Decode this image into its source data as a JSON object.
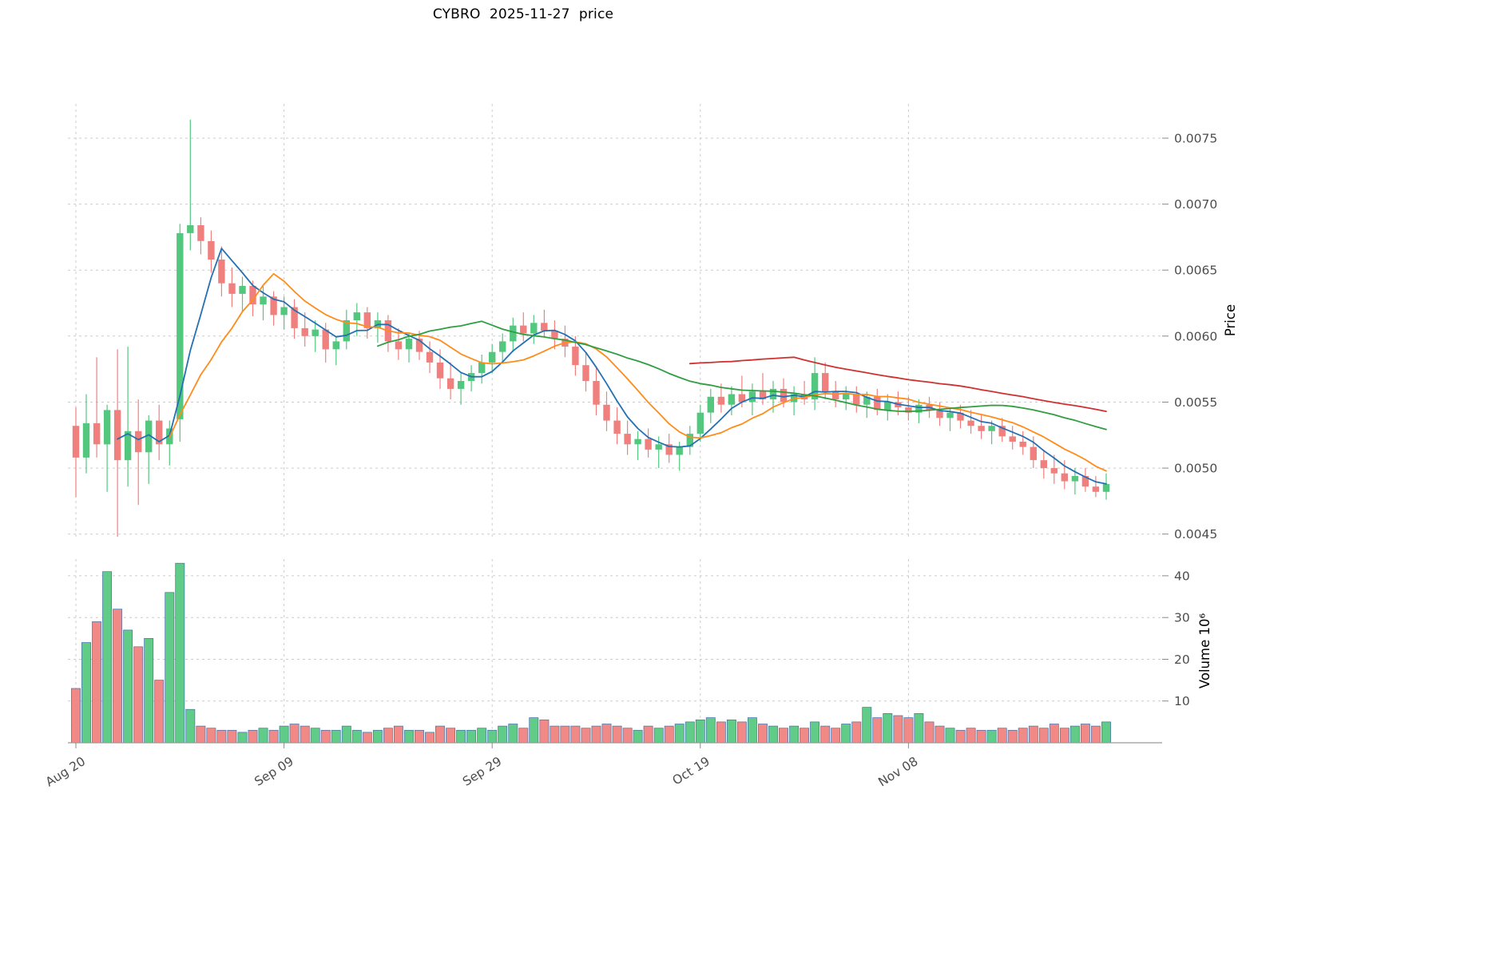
{
  "chart_data": {
    "type": "candlestick",
    "title": "CYBRO  2025-11-27  price",
    "price_axis": {
      "label": "Price",
      "ticks": [
        0.0045,
        0.005,
        0.0055,
        0.006,
        0.0065,
        0.007,
        0.0075
      ],
      "ylim": [
        0.00448,
        0.00776
      ],
      "tick_decimals": 4
    },
    "volume_axis": {
      "label": "Volume  10⁶",
      "ticks": [
        10,
        20,
        30,
        40
      ],
      "ylim": [
        0,
        44
      ],
      "unit_multiplier": 1000000
    },
    "x_axis": {
      "tick_labels": [
        "Aug 20",
        "Sep 09",
        "Sep 29",
        "Oct 19",
        "Nov 08"
      ],
      "tick_indices": [
        0,
        20,
        40,
        60,
        80
      ]
    },
    "colors": {
      "up": "#54c77e",
      "down": "#f0807d",
      "volume_edge": "#4472a8",
      "grid": "#cccccc",
      "axis_text": "#4d4d4d",
      "axis_line": "#9a9a9a"
    },
    "moving_averages": [
      {
        "window": 5,
        "color": "#2470b3"
      },
      {
        "window": 10,
        "color": "#ff8c1a"
      },
      {
        "window": 30,
        "color": "#2f9e41"
      },
      {
        "window": 60,
        "color": "#d03030"
      }
    ],
    "legend": "none",
    "grid": "dashed",
    "candles": {
      "columns": [
        "open",
        "high",
        "low",
        "close",
        "volume_millions"
      ],
      "rows": [
        [
          0.00532,
          0.00546,
          0.00478,
          0.00508,
          13
        ],
        [
          0.00508,
          0.00556,
          0.00496,
          0.00534,
          24
        ],
        [
          0.00534,
          0.00584,
          0.00508,
          0.00518,
          29
        ],
        [
          0.00518,
          0.00548,
          0.00482,
          0.00544,
          41
        ],
        [
          0.00544,
          0.0059,
          0.00448,
          0.00506,
          32
        ],
        [
          0.00506,
          0.00592,
          0.00486,
          0.00528,
          27
        ],
        [
          0.00528,
          0.00552,
          0.00472,
          0.00512,
          23
        ],
        [
          0.00512,
          0.0054,
          0.00488,
          0.00536,
          25
        ],
        [
          0.00536,
          0.00548,
          0.00506,
          0.00518,
          15
        ],
        [
          0.00518,
          0.00536,
          0.00502,
          0.0053,
          36
        ],
        [
          0.00537,
          0.00685,
          0.0052,
          0.00678,
          43
        ],
        [
          0.00678,
          0.00764,
          0.00665,
          0.00684,
          8
        ],
        [
          0.00684,
          0.0069,
          0.00662,
          0.00672,
          4
        ],
        [
          0.00672,
          0.0068,
          0.00648,
          0.00658,
          3.5
        ],
        [
          0.00658,
          0.00668,
          0.0063,
          0.0064,
          3
        ],
        [
          0.0064,
          0.00652,
          0.00622,
          0.00632,
          3
        ],
        [
          0.00632,
          0.00645,
          0.00618,
          0.00638,
          2.5
        ],
        [
          0.00638,
          0.00642,
          0.00615,
          0.00624,
          3
        ],
        [
          0.00624,
          0.00638,
          0.00612,
          0.0063,
          3.5
        ],
        [
          0.0063,
          0.00634,
          0.00608,
          0.00616,
          3
        ],
        [
          0.00616,
          0.0063,
          0.00605,
          0.00622,
          4
        ],
        [
          0.00622,
          0.00628,
          0.00598,
          0.00606,
          4.5
        ],
        [
          0.00606,
          0.00618,
          0.00592,
          0.006,
          4
        ],
        [
          0.006,
          0.00612,
          0.00588,
          0.00605,
          3.5
        ],
        [
          0.00605,
          0.0061,
          0.0058,
          0.0059,
          3
        ],
        [
          0.0059,
          0.006,
          0.00578,
          0.00596,
          3
        ],
        [
          0.00596,
          0.0062,
          0.0059,
          0.00612,
          4
        ],
        [
          0.00612,
          0.00625,
          0.006,
          0.00618,
          3
        ],
        [
          0.00618,
          0.00622,
          0.00598,
          0.00606,
          2.5
        ],
        [
          0.00606,
          0.00618,
          0.00595,
          0.00612,
          3
        ],
        [
          0.00612,
          0.00616,
          0.00588,
          0.00596,
          3.5
        ],
        [
          0.00596,
          0.00606,
          0.00582,
          0.0059,
          4
        ],
        [
          0.0059,
          0.00602,
          0.0058,
          0.00598,
          3
        ],
        [
          0.00598,
          0.00604,
          0.00582,
          0.00588,
          3
        ],
        [
          0.00588,
          0.00596,
          0.00572,
          0.0058,
          2.5
        ],
        [
          0.0058,
          0.0059,
          0.0056,
          0.00568,
          4
        ],
        [
          0.00568,
          0.0058,
          0.00552,
          0.0056,
          3.5
        ],
        [
          0.0056,
          0.00572,
          0.00548,
          0.00566,
          3
        ],
        [
          0.00566,
          0.00578,
          0.00558,
          0.00572,
          3
        ],
        [
          0.00572,
          0.00586,
          0.00564,
          0.0058,
          3.5
        ],
        [
          0.0058,
          0.00594,
          0.00572,
          0.00588,
          3
        ],
        [
          0.00588,
          0.00602,
          0.0058,
          0.00596,
          4
        ],
        [
          0.00596,
          0.00614,
          0.00588,
          0.00608,
          4.5
        ],
        [
          0.00608,
          0.00618,
          0.00596,
          0.00602,
          3.5
        ],
        [
          0.00602,
          0.00616,
          0.00594,
          0.0061,
          6
        ],
        [
          0.0061,
          0.0062,
          0.006,
          0.00604,
          5.5
        ],
        [
          0.00604,
          0.00612,
          0.0059,
          0.00598,
          4
        ],
        [
          0.00598,
          0.00608,
          0.00584,
          0.00592,
          4
        ],
        [
          0.00592,
          0.006,
          0.0057,
          0.00578,
          4
        ],
        [
          0.00578,
          0.00588,
          0.00558,
          0.00566,
          3.5
        ],
        [
          0.00566,
          0.00576,
          0.0054,
          0.00548,
          4
        ],
        [
          0.00548,
          0.00558,
          0.00528,
          0.00536,
          4.5
        ],
        [
          0.00536,
          0.00546,
          0.00518,
          0.00526,
          4
        ],
        [
          0.00526,
          0.00536,
          0.0051,
          0.00518,
          3.5
        ],
        [
          0.00518,
          0.00528,
          0.00506,
          0.00522,
          3
        ],
        [
          0.00522,
          0.0053,
          0.00508,
          0.00514,
          4
        ],
        [
          0.00514,
          0.00524,
          0.005,
          0.00518,
          3.5
        ],
        [
          0.00518,
          0.00526,
          0.00504,
          0.0051,
          4
        ],
        [
          0.0051,
          0.0052,
          0.00498,
          0.00516,
          4.5
        ],
        [
          0.00516,
          0.00532,
          0.0051,
          0.00526,
          5
        ],
        [
          0.00526,
          0.00548,
          0.0052,
          0.00542,
          5.5
        ],
        [
          0.00542,
          0.0056,
          0.00534,
          0.00554,
          6
        ],
        [
          0.00554,
          0.00564,
          0.00542,
          0.00548,
          5
        ],
        [
          0.00548,
          0.00562,
          0.0054,
          0.00556,
          5.5
        ],
        [
          0.00556,
          0.0057,
          0.00546,
          0.0055,
          5
        ],
        [
          0.0055,
          0.00564,
          0.0054,
          0.00558,
          6
        ],
        [
          0.00558,
          0.00572,
          0.00548,
          0.00552,
          4.5
        ],
        [
          0.00552,
          0.00566,
          0.00542,
          0.0056,
          4
        ],
        [
          0.0056,
          0.00568,
          0.00546,
          0.0055,
          3.5
        ],
        [
          0.0055,
          0.00562,
          0.0054,
          0.00556,
          4
        ],
        [
          0.00556,
          0.00566,
          0.00548,
          0.00552,
          3.5
        ],
        [
          0.00552,
          0.00584,
          0.00544,
          0.00572,
          5
        ],
        [
          0.00572,
          0.0058,
          0.00552,
          0.00558,
          4
        ],
        [
          0.00558,
          0.00566,
          0.00546,
          0.00552,
          3.5
        ],
        [
          0.00552,
          0.00562,
          0.00544,
          0.00556,
          4.5
        ],
        [
          0.00556,
          0.00562,
          0.00542,
          0.00548,
          5
        ],
        [
          0.00548,
          0.00558,
          0.00538,
          0.00554,
          8.5
        ],
        [
          0.00554,
          0.0056,
          0.0054,
          0.00544,
          6
        ],
        [
          0.00544,
          0.00556,
          0.00536,
          0.0055,
          7
        ],
        [
          0.0055,
          0.00558,
          0.0054,
          0.00546,
          6.5
        ],
        [
          0.00546,
          0.00554,
          0.00536,
          0.00542,
          6
        ],
        [
          0.00542,
          0.00552,
          0.00534,
          0.00548,
          7
        ],
        [
          0.00548,
          0.00554,
          0.00538,
          0.00544,
          5
        ],
        [
          0.00544,
          0.0055,
          0.00532,
          0.00538,
          4
        ],
        [
          0.00538,
          0.00546,
          0.00528,
          0.00542,
          3.5
        ],
        [
          0.00542,
          0.00548,
          0.0053,
          0.00536,
          3
        ],
        [
          0.00536,
          0.00544,
          0.00526,
          0.00532,
          3.5
        ],
        [
          0.00532,
          0.0054,
          0.00522,
          0.00528,
          3
        ],
        [
          0.00528,
          0.00536,
          0.00518,
          0.00532,
          3
        ],
        [
          0.00532,
          0.00538,
          0.0052,
          0.00524,
          3.5
        ],
        [
          0.00524,
          0.00532,
          0.00514,
          0.0052,
          3
        ],
        [
          0.0052,
          0.00528,
          0.0051,
          0.00516,
          3.5
        ],
        [
          0.00516,
          0.00524,
          0.005,
          0.00506,
          4
        ],
        [
          0.00506,
          0.00514,
          0.00492,
          0.005,
          3.5
        ],
        [
          0.005,
          0.0051,
          0.00488,
          0.00496,
          4.5
        ],
        [
          0.00496,
          0.00506,
          0.00484,
          0.0049,
          3.5
        ],
        [
          0.0049,
          0.005,
          0.0048,
          0.00494,
          4
        ],
        [
          0.00494,
          0.005,
          0.00482,
          0.00486,
          4.5
        ],
        [
          0.00486,
          0.00494,
          0.00478,
          0.00482,
          4
        ],
        [
          0.00482,
          0.00496,
          0.00476,
          0.00488,
          5
        ]
      ]
    }
  }
}
